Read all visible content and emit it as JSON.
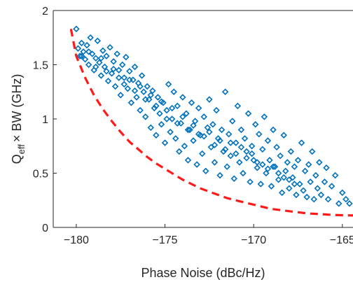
{
  "chart_data": {
    "type": "scatter",
    "title": "",
    "xlabel": "Phase Noise (dBc/Hz)",
    "ylabel": {
      "main": "Q",
      "sub": "eff",
      "rest": "× BW (GHz)"
    },
    "xlim": [
      -181.3,
      -164.4
    ],
    "ylim": [
      0,
      2
    ],
    "xticks": [
      -180,
      -175,
      -170,
      -165
    ],
    "xtick_labels": [
      "−180",
      "−175",
      "−170",
      "−165"
    ],
    "yticks": [
      0,
      0.5,
      1,
      1.5,
      2
    ],
    "ytick_labels": [
      "0",
      "0.5",
      "1",
      "1.5",
      "2"
    ],
    "grid": false,
    "scatter_series": {
      "marker": "diamond-open",
      "color": "#0072BD",
      "points": [
        [
          -180.0,
          1.83
        ],
        [
          -179.9,
          1.65
        ],
        [
          -179.8,
          1.58
        ],
        [
          -179.7,
          1.7
        ],
        [
          -179.6,
          1.62
        ],
        [
          -179.5,
          1.55
        ],
        [
          -179.4,
          1.68
        ],
        [
          -179.3,
          1.5
        ],
        [
          -179.2,
          1.75
        ],
        [
          -179.1,
          1.6
        ],
        [
          -179.0,
          1.45
        ],
        [
          -178.9,
          1.56
        ],
        [
          -178.8,
          1.72
        ],
        [
          -178.7,
          1.52
        ],
        [
          -178.6,
          1.4
        ],
        [
          -178.5,
          1.63
        ],
        [
          -178.4,
          1.48
        ],
        [
          -178.3,
          1.58
        ],
        [
          -178.2,
          1.35
        ],
        [
          -178.1,
          1.66
        ],
        [
          -178.0,
          1.42
        ],
        [
          -177.9,
          1.53
        ],
        [
          -177.8,
          1.3
        ],
        [
          -177.7,
          1.6
        ],
        [
          -177.6,
          1.45
        ],
        [
          -177.5,
          1.22
        ],
        [
          -177.4,
          1.5
        ],
        [
          -177.3,
          1.38
        ],
        [
          -177.2,
          1.57
        ],
        [
          -177.1,
          1.28
        ],
        [
          -177.0,
          1.44
        ],
        [
          -176.9,
          1.15
        ],
        [
          -176.8,
          1.36
        ],
        [
          -176.7,
          1.48
        ],
        [
          -176.6,
          1.2
        ],
        [
          -176.5,
          1.33
        ],
        [
          -176.4,
          1.08
        ],
        [
          -176.3,
          1.4
        ],
        [
          -176.2,
          1.25
        ],
        [
          -176.1,
          1.02
        ],
        [
          -176.0,
          1.3
        ],
        [
          -175.9,
          1.18
        ],
        [
          -175.8,
          0.92
        ],
        [
          -175.7,
          1.26
        ],
        [
          -175.6,
          1.1
        ],
        [
          -175.5,
          0.85
        ],
        [
          -175.4,
          1.2
        ],
        [
          -175.3,
          1.05
        ],
        [
          -175.2,
          0.95
        ],
        [
          -175.1,
          1.15
        ],
        [
          -175.0,
          0.78
        ],
        [
          -174.9,
          1.08
        ],
        [
          -174.8,
          1.32
        ],
        [
          -174.7,
          0.88
        ],
        [
          -174.6,
          1.0
        ],
        [
          -174.5,
          1.25
        ],
        [
          -174.4,
          0.82
        ],
        [
          -174.3,
          1.12
        ],
        [
          -174.2,
          0.7
        ],
        [
          -174.1,
          0.96
        ],
        [
          -174.0,
          1.2
        ],
        [
          -173.9,
          0.75
        ],
        [
          -173.8,
          1.05
        ],
        [
          -173.7,
          0.62
        ],
        [
          -173.6,
          0.9
        ],
        [
          -173.5,
          1.15
        ],
        [
          -173.4,
          0.8
        ],
        [
          -173.3,
          0.98
        ],
        [
          -173.2,
          0.58
        ],
        [
          -173.1,
          1.1
        ],
        [
          -173.0,
          0.85
        ],
        [
          -172.9,
          0.68
        ],
        [
          -172.8,
          1.02
        ],
        [
          -172.7,
          0.52
        ],
        [
          -172.6,
          0.92
        ],
        [
          -172.5,
          1.18
        ],
        [
          -172.4,
          0.74
        ],
        [
          -172.3,
          0.95
        ],
        [
          -172.2,
          0.6
        ],
        [
          -172.1,
          1.08
        ],
        [
          -172.0,
          0.82
        ],
        [
          -171.9,
          0.48
        ],
        [
          -171.8,
          0.9
        ],
        [
          -171.7,
          0.7
        ],
        [
          -171.6,
          1.25
        ],
        [
          -171.5,
          0.56
        ],
        [
          -171.4,
          0.86
        ],
        [
          -171.3,
          0.66
        ],
        [
          -171.2,
          0.98
        ],
        [
          -171.1,
          0.45
        ],
        [
          -171.0,
          0.78
        ],
        [
          -170.9,
          1.12
        ],
        [
          -170.8,
          0.6
        ],
        [
          -170.7,
          0.9
        ],
        [
          -170.6,
          0.5
        ],
        [
          -170.5,
          0.82
        ],
        [
          -170.4,
          0.7
        ],
        [
          -170.3,
          1.05
        ],
        [
          -170.2,
          0.42
        ],
        [
          -170.1,
          0.75
        ],
        [
          -170.0,
          0.62
        ],
        [
          -169.9,
          0.95
        ],
        [
          -169.8,
          0.55
        ],
        [
          -169.7,
          0.86
        ],
        [
          -169.6,
          0.4
        ],
        [
          -169.5,
          0.72
        ],
        [
          -169.4,
          1.02
        ],
        [
          -169.3,
          0.5
        ],
        [
          -169.2,
          0.8
        ],
        [
          -169.1,
          0.62
        ],
        [
          -169.0,
          0.38
        ],
        [
          -168.9,
          0.9
        ],
        [
          -168.8,
          0.56
        ],
        [
          -168.7,
          0.74
        ],
        [
          -168.6,
          0.44
        ],
        [
          -168.5,
          0.66
        ],
        [
          -168.4,
          0.32
        ],
        [
          -168.3,
          0.85
        ],
        [
          -168.2,
          0.52
        ],
        [
          -168.1,
          0.6
        ],
        [
          -168.0,
          0.36
        ],
        [
          -167.9,
          0.7
        ],
        [
          -167.8,
          0.46
        ],
        [
          -167.7,
          0.56
        ],
        [
          -167.6,
          0.3
        ],
        [
          -167.5,
          0.62
        ],
        [
          -167.4,
          0.4
        ],
        [
          -167.3,
          0.78
        ],
        [
          -167.2,
          0.34
        ],
        [
          -167.1,
          0.52
        ],
        [
          -167.0,
          0.28
        ],
        [
          -166.9,
          0.58
        ],
        [
          -166.8,
          0.42
        ],
        [
          -166.7,
          0.7
        ],
        [
          -166.6,
          0.26
        ],
        [
          -166.5,
          0.48
        ],
        [
          -166.4,
          0.36
        ],
        [
          -166.3,
          0.6
        ],
        [
          -166.2,
          0.3
        ],
        [
          -166.0,
          0.42
        ],
        [
          -165.9,
          0.55
        ],
        [
          -165.8,
          0.26
        ],
        [
          -165.6,
          0.38
        ],
        [
          -165.4,
          0.48
        ],
        [
          -165.2,
          0.22
        ],
        [
          -165.0,
          0.32
        ],
        [
          -164.8,
          0.26
        ],
        [
          -164.6,
          0.22
        ],
        [
          -179.7,
          1.58
        ],
        [
          -179.3,
          1.62
        ],
        [
          -178.9,
          1.48
        ],
        [
          -178.6,
          1.56
        ],
        [
          -178.3,
          1.44
        ],
        [
          -177.9,
          1.46
        ],
        [
          -177.6,
          1.38
        ],
        [
          -177.3,
          1.32
        ],
        [
          -177.0,
          1.36
        ],
        [
          -176.7,
          1.26
        ],
        [
          -176.4,
          1.3
        ],
        [
          -176.1,
          1.18
        ],
        [
          -175.8,
          1.22
        ],
        [
          -175.5,
          1.12
        ],
        [
          -175.2,
          1.16
        ],
        [
          -174.9,
          1.0
        ],
        [
          -174.6,
          1.1
        ],
        [
          -174.3,
          0.96
        ],
        [
          -174.0,
          1.02
        ],
        [
          -173.7,
          0.9
        ],
        [
          -173.4,
          0.94
        ],
        [
          -173.1,
          0.86
        ],
        [
          -172.8,
          0.84
        ],
        [
          -172.5,
          0.88
        ],
        [
          -172.2,
          0.76
        ],
        [
          -171.9,
          0.8
        ],
        [
          -171.6,
          0.72
        ],
        [
          -171.3,
          0.78
        ],
        [
          -171.0,
          0.68
        ],
        [
          -170.7,
          0.74
        ],
        [
          -170.4,
          0.64
        ],
        [
          -170.1,
          0.68
        ],
        [
          -169.8,
          0.6
        ],
        [
          -169.5,
          0.58
        ],
        [
          -169.2,
          0.54
        ],
        [
          -168.9,
          0.56
        ],
        [
          -168.6,
          0.5
        ],
        [
          -168.3,
          0.46
        ],
        [
          -168.0,
          0.44
        ],
        [
          -167.7,
          0.4
        ]
      ]
    },
    "curve_series": {
      "style": "dashed",
      "color": "#FF1A1A",
      "points": [
        [
          -180.3,
          1.83
        ],
        [
          -180.0,
          1.58
        ],
        [
          -179.5,
          1.38
        ],
        [
          -179.0,
          1.22
        ],
        [
          -178.5,
          1.09
        ],
        [
          -178.0,
          0.98
        ],
        [
          -177.5,
          0.88
        ],
        [
          -177.0,
          0.79
        ],
        [
          -176.5,
          0.72
        ],
        [
          -176.0,
          0.65
        ],
        [
          -175.5,
          0.59
        ],
        [
          -175.0,
          0.54
        ],
        [
          -174.5,
          0.49
        ],
        [
          -174.0,
          0.44
        ],
        [
          -173.5,
          0.4
        ],
        [
          -173.0,
          0.36
        ],
        [
          -172.5,
          0.33
        ],
        [
          -172.0,
          0.3
        ],
        [
          -171.5,
          0.27
        ],
        [
          -171.0,
          0.25
        ],
        [
          -170.5,
          0.23
        ],
        [
          -170.0,
          0.21
        ],
        [
          -169.5,
          0.19
        ],
        [
          -169.0,
          0.17
        ],
        [
          -168.5,
          0.16
        ],
        [
          -168.0,
          0.15
        ],
        [
          -167.5,
          0.14
        ],
        [
          -167.0,
          0.13
        ],
        [
          -166.5,
          0.125
        ],
        [
          -166.0,
          0.12
        ],
        [
          -165.5,
          0.115
        ],
        [
          -165.0,
          0.112
        ],
        [
          -164.4,
          0.11
        ]
      ]
    }
  }
}
